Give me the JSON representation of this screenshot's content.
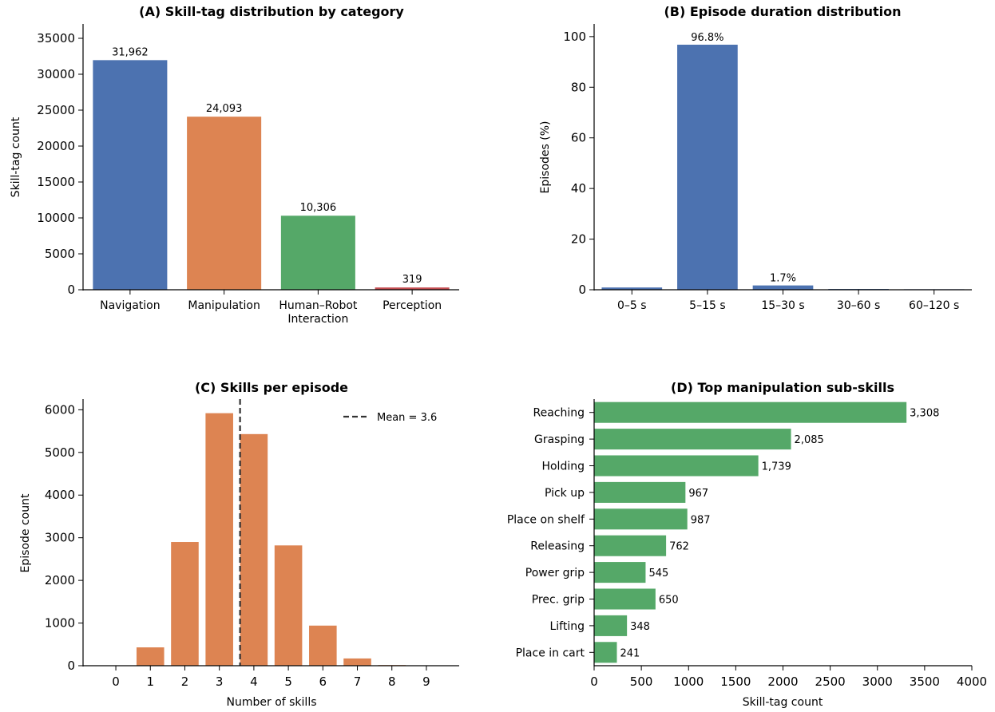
{
  "chart_data": [
    {
      "id": "A",
      "type": "bar",
      "title": "(A)  Skill-tag distribution by category",
      "xlabel": "",
      "ylabel": "Skill-tag count",
      "categories": [
        [
          "Navigation"
        ],
        [
          "Manipulation"
        ],
        [
          "Human–Robot",
          "Interaction"
        ],
        [
          "Perception"
        ]
      ],
      "values": [
        31962,
        24093,
        10306,
        319
      ],
      "value_labels": [
        "31,962",
        "24,093",
        "10,306",
        "319"
      ],
      "colors": [
        "#4c72b0",
        "#dd8452",
        "#55a868",
        "#c44e52"
      ],
      "ylim": [
        0,
        37000
      ],
      "yticks": [
        0,
        5000,
        10000,
        15000,
        20000,
        25000,
        30000,
        35000
      ],
      "grid": false
    },
    {
      "id": "B",
      "type": "bar",
      "title": "(B)  Episode duration distribution",
      "xlabel": "",
      "ylabel": "Episodes (%)",
      "categories": [
        "0–5 s",
        "5–15 s",
        "15–30 s",
        "30–60 s",
        "60–120 s"
      ],
      "values": [
        0.9,
        96.8,
        1.7,
        0.3,
        0.2
      ],
      "value_labels": [
        "",
        "96.8%",
        "1.7%",
        "",
        ""
      ],
      "color": "#4c72b0",
      "ylim": [
        0,
        105
      ],
      "yticks": [
        0,
        20,
        40,
        60,
        80,
        100
      ],
      "grid": false
    },
    {
      "id": "C",
      "type": "bar",
      "title": "(C)  Skills per episode",
      "xlabel": "Number of skills",
      "ylabel": "Episode count",
      "categories": [
        "0",
        "1",
        "2",
        "3",
        "4",
        "5",
        "6",
        "7",
        "8",
        "9"
      ],
      "x": [
        0,
        1,
        2,
        3,
        4,
        5,
        6,
        7,
        8,
        9
      ],
      "values": [
        5,
        430,
        2900,
        5920,
        5430,
        2820,
        940,
        170,
        15,
        3
      ],
      "color": "#dd8452",
      "ylim": [
        0,
        6250
      ],
      "yticks": [
        0,
        1000,
        2000,
        3000,
        4000,
        5000,
        6000
      ],
      "xlim": [
        -0.95,
        9.95
      ],
      "mean": 3.6,
      "mean_label": "Mean = 3.6",
      "legend_position": "top-right",
      "grid": false
    },
    {
      "id": "D",
      "type": "bar",
      "orientation": "horizontal",
      "title": "(D)  Top manipulation sub-skills",
      "xlabel": "Skill-tag count",
      "ylabel": "",
      "categories": [
        "Reaching",
        "Grasping",
        "Holding",
        "Pick up",
        "Place on shelf",
        "Releasing",
        "Power grip",
        "Prec. grip",
        "Lifting",
        "Place in cart"
      ],
      "values": [
        3308,
        2085,
        1739,
        967,
        987,
        762,
        545,
        650,
        348,
        241
      ],
      "value_labels": [
        "3,308",
        "2,085",
        "1,739",
        "967",
        "987",
        "762",
        "545",
        "650",
        "348",
        "241"
      ],
      "color": "#55a868",
      "xlim": [
        0,
        4000
      ],
      "xticks": [
        0,
        500,
        1000,
        1500,
        2000,
        2500,
        3000,
        3500,
        4000
      ],
      "grid": false
    }
  ]
}
